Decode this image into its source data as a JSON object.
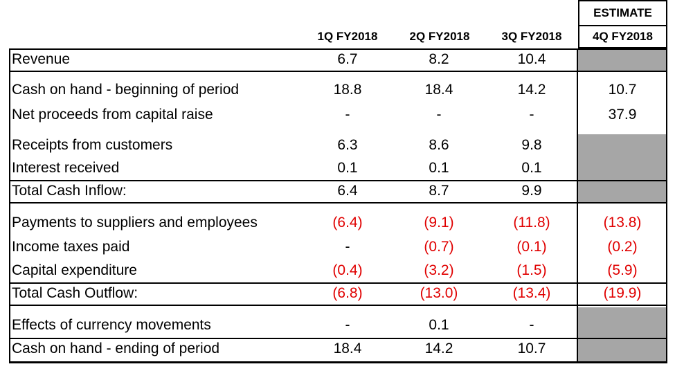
{
  "header": {
    "estimate_label": "ESTIMATE",
    "columns": [
      "1Q FY2018",
      "2Q FY2018",
      "3Q FY2018",
      "4Q FY2018"
    ]
  },
  "rows": [
    {
      "label": "Revenue",
      "values": [
        "6.7",
        "8.2",
        "10.4",
        ""
      ]
    },
    {
      "label": "Cash on hand - beginning of period",
      "values": [
        "18.8",
        "18.4",
        "14.2",
        "10.7"
      ]
    },
    {
      "label": "Net proceeds from capital raise",
      "values": [
        "-",
        "-",
        "-",
        "37.9"
      ]
    },
    {
      "label": "Receipts from customers",
      "values": [
        "6.3",
        "8.6",
        "9.8",
        ""
      ]
    },
    {
      "label": "Interest received",
      "values": [
        "0.1",
        "0.1",
        "0.1",
        ""
      ]
    },
    {
      "label": "Total Cash Inflow:",
      "values": [
        "6.4",
        "8.7",
        "9.9",
        ""
      ]
    },
    {
      "label": "Payments to suppliers and employees",
      "values": [
        "(6.4)",
        "(9.1)",
        "(11.8)",
        "(13.8)"
      ]
    },
    {
      "label": "Income taxes paid",
      "values": [
        "-",
        "(0.7)",
        "(0.1)",
        "(0.2)"
      ]
    },
    {
      "label": "Capital expenditure",
      "values": [
        "(0.4)",
        "(3.2)",
        "(1.5)",
        "(5.9)"
      ]
    },
    {
      "label": "Total Cash Outflow:",
      "values": [
        "(6.8)",
        "(13.0)",
        "(13.4)",
        "(19.9)"
      ]
    },
    {
      "label": "Effects of currency movements",
      "values": [
        "-",
        "0.1",
        "-",
        ""
      ]
    },
    {
      "label": "Cash on hand - ending of period",
      "values": [
        "18.4",
        "14.2",
        "10.7",
        ""
      ]
    }
  ],
  "colors": {
    "negative": "#e00000",
    "shade": "#a6a6a6"
  }
}
